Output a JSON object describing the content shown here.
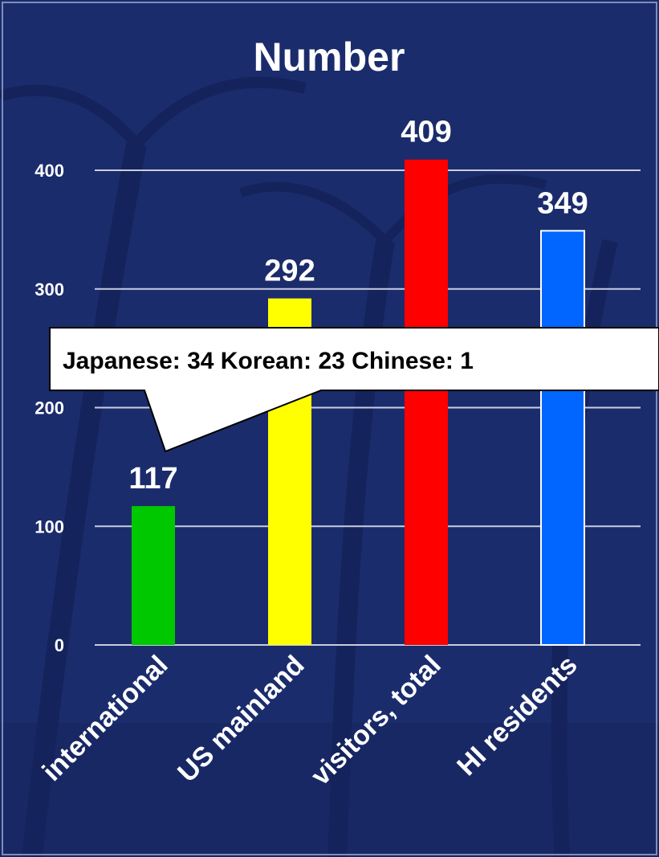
{
  "chart_data": {
    "type": "bar",
    "title": "Number",
    "categories": [
      "international",
      "US mainland",
      "visitors, total",
      "HI residents"
    ],
    "values": [
      117,
      292,
      409,
      349
    ],
    "colors": [
      "#00c800",
      "#ffff00",
      "#ff0000",
      "#0066ff"
    ],
    "ylim": [
      0,
      400
    ],
    "yticks": [
      0,
      100,
      200,
      300,
      400
    ],
    "grid": true,
    "annotation": "Japanese: 34  Korean: 23  Chinese: 1"
  },
  "colors": {
    "background": "#1b2c6c",
    "gridline": "#c8cde0",
    "text": "#ffffff"
  }
}
